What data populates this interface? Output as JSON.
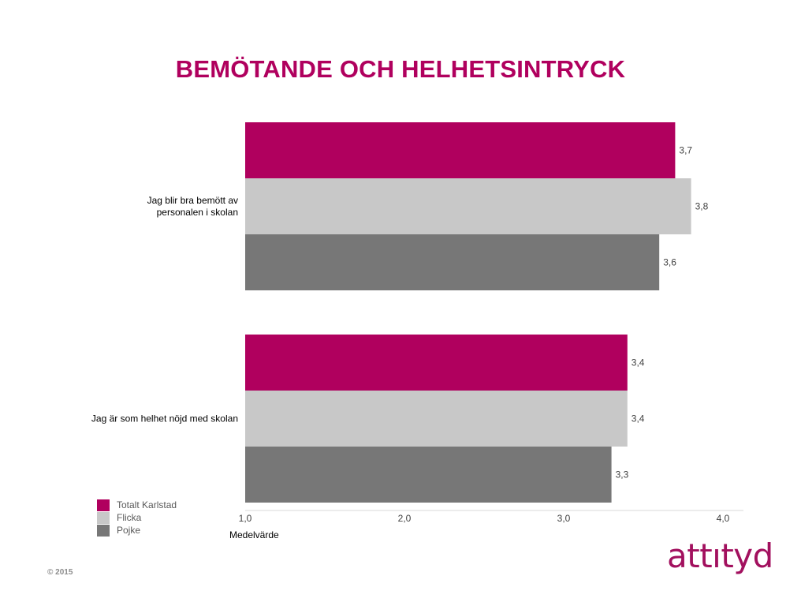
{
  "title": "BEMÖTANDE OCH HELHETSINTRYCK",
  "colors": {
    "title": "#b0005e",
    "brand": "#a2105e"
  },
  "footer": {
    "copyright": "© 2015",
    "logo": "attıtyd"
  },
  "chart_data": {
    "type": "bar",
    "orientation": "horizontal",
    "categories": [
      "Jag blir bra bemött av personalen i skolan",
      "Jag är som helhet nöjd med skolan"
    ],
    "category_lines": [
      [
        "Jag blir bra bemött av",
        "personalen i skolan"
      ],
      [
        "Jag är som helhet nöjd med skolan"
      ]
    ],
    "series": [
      {
        "name": "Totalt Karlstad",
        "color": "#b0005e",
        "values": [
          3.7,
          3.4
        ],
        "labels": [
          "3,7",
          "3,4"
        ]
      },
      {
        "name": "Flicka",
        "color": "#c8c8c8",
        "values": [
          3.8,
          3.4
        ],
        "labels": [
          "3,8",
          "3,4"
        ]
      },
      {
        "name": "Pojke",
        "color": "#777777",
        "values": [
          3.6,
          3.3
        ],
        "labels": [
          "3,6",
          "3,3"
        ]
      }
    ],
    "xlim": [
      1.0,
      4.0
    ],
    "xticks": [
      1.0,
      2.0,
      3.0,
      4.0
    ],
    "xtick_labels": [
      "1,0",
      "2,0",
      "3,0",
      "4,0"
    ],
    "xlabel": "Medelvärde",
    "ylabel": "",
    "grid": false,
    "legend_position": "bottom-left"
  }
}
